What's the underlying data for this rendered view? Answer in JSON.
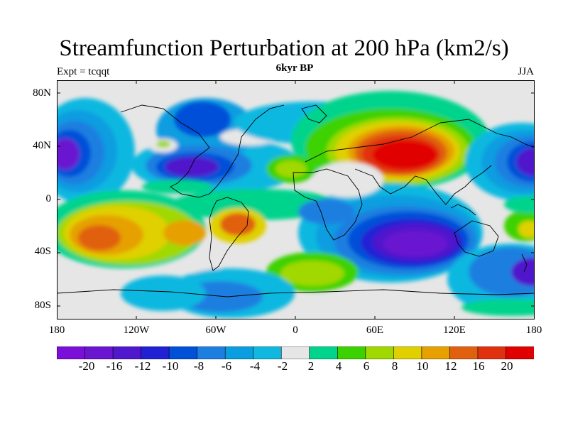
{
  "title": "Streamfunction Perturbation at 200 hPa (km2/s)",
  "subtitle": "6kyr BP",
  "left_label": "Expt = tcqqt",
  "right_label": "JJA",
  "axes": {
    "y_ticks": [
      "80N",
      "40N",
      "0",
      "40S",
      "80S"
    ],
    "x_ticks": [
      "180",
      "120W",
      "60W",
      "0",
      "60E",
      "120E",
      "180"
    ]
  },
  "colorbar": {
    "labels": [
      "-20",
      "-16",
      "-12",
      "-10",
      "-8",
      "-6",
      "-4",
      "-2",
      "2",
      "4",
      "6",
      "8",
      "10",
      "12",
      "16",
      "20"
    ],
    "colors": [
      "#7a10d8",
      "#6a16d0",
      "#5018cc",
      "#2020d4",
      "#0050d8",
      "#1c7fe0",
      "#0a9de0",
      "#10b8e0",
      "#e6e6e6",
      "#00d48c",
      "#3cd200",
      "#a0d800",
      "#e0d000",
      "#e6a000",
      "#e06010",
      "#e03010",
      "#e00000"
    ]
  }
}
